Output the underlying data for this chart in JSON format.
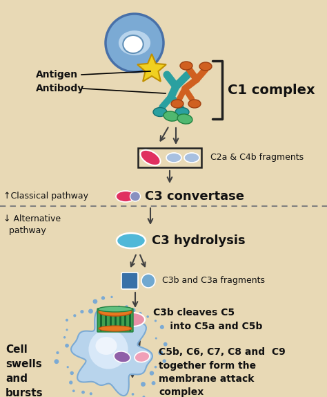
{
  "bg_color": "#e8d9b5",
  "labels": {
    "antigen": "Antigen",
    "antibody": "Antibody",
    "c1_complex": "C1 complex",
    "c2a_c4b": "C2a & C4b fragments",
    "c3_convertase": "C3 convertase",
    "classical_pathway": "↑Classical pathway",
    "alternative_pathway": "↓ Alternative\n  pathway",
    "c3_hydrolysis": "C3 hydrolysis",
    "c3b_c3a": "C3b and C3a fragments",
    "c3b_cleaves": "C3b cleaves C5\n     into C5a and C5b",
    "mac": "C5b, C6, C7, C8 and  C9\ntogether form the\nmembrane attack\ncomplex",
    "cell_swells": "Cell\nswells\nand\nbursts"
  },
  "colors": {
    "cell_blue_outer": "#7baad4",
    "cell_blue_inner": "#b8d4ec",
    "cell_blue_core": "#ddeeff",
    "antibody_teal": "#2aa0a0",
    "antibody_orange": "#d06020",
    "antibody_green": "#50b870",
    "antigen_yellow": "#f0d020",
    "pill_red": "#e03060",
    "pill_red2": "#c02858",
    "pill_blue_dark": "#4888c8",
    "pill_blue_light": "#a8c0e0",
    "pill_pink": "#e890a8",
    "pill_cyan": "#50b8d8",
    "pill_purple": "#9060a8",
    "pill_light_pink": "#f0a0b8",
    "fragment_blue_dark": "#3870a8",
    "fragment_blue_light": "#70a8d0",
    "arrow_color": "#404040",
    "text_color": "#111111",
    "bracket_color": "#202020",
    "dotted_line_color": "#808080",
    "mac_orange": "#e87820",
    "mac_green": "#40a050",
    "mac_teal": "#30c070"
  }
}
